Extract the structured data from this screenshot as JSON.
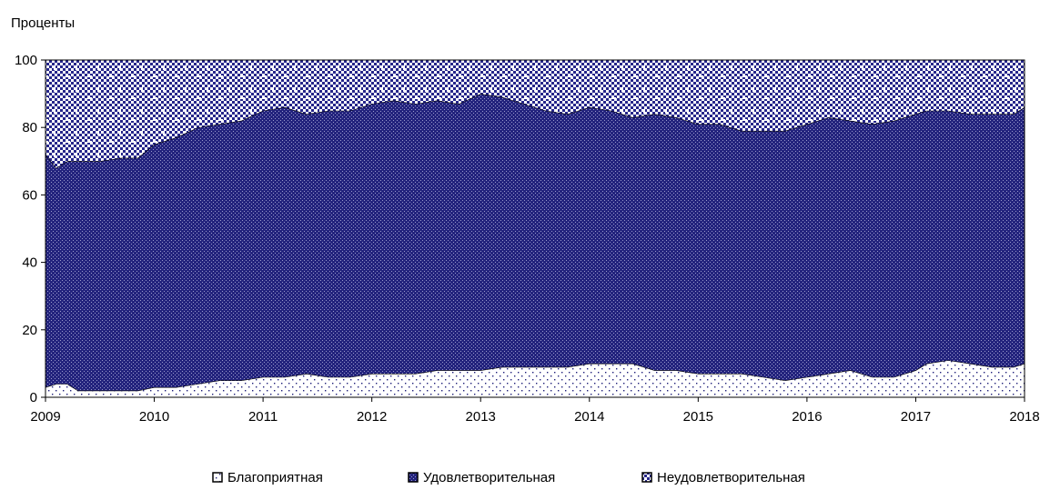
{
  "chart_data": {
    "type": "area",
    "stacked": true,
    "ylabel": "Проценты",
    "ylim": [
      0,
      100
    ],
    "yticks": [
      0,
      20,
      40,
      60,
      80,
      100
    ],
    "xlim": [
      2009,
      2018
    ],
    "xticks": [
      "2009",
      "2010",
      "2011",
      "2012",
      "2013",
      "2014",
      "2015",
      "2016",
      "2017",
      "2018"
    ],
    "legend_position": "bottom",
    "grid": false,
    "series": [
      {
        "name": "Благоприятная",
        "values": [
          [
            2009.0,
            3
          ],
          [
            2009.1,
            4
          ],
          [
            2009.2,
            4
          ],
          [
            2009.3,
            2
          ],
          [
            2009.5,
            2
          ],
          [
            2009.7,
            2
          ],
          [
            2009.85,
            2
          ],
          [
            2010.0,
            3
          ],
          [
            2010.2,
            3
          ],
          [
            2010.4,
            4
          ],
          [
            2010.6,
            5
          ],
          [
            2010.8,
            5
          ],
          [
            2011.0,
            6
          ],
          [
            2011.2,
            6
          ],
          [
            2011.4,
            7
          ],
          [
            2011.6,
            6
          ],
          [
            2011.8,
            6
          ],
          [
            2012.0,
            7
          ],
          [
            2012.2,
            7
          ],
          [
            2012.4,
            7
          ],
          [
            2012.6,
            8
          ],
          [
            2012.8,
            8
          ],
          [
            2013.0,
            8
          ],
          [
            2013.2,
            9
          ],
          [
            2013.4,
            9
          ],
          [
            2013.6,
            9
          ],
          [
            2013.8,
            9
          ],
          [
            2014.0,
            10
          ],
          [
            2014.2,
            10
          ],
          [
            2014.4,
            10
          ],
          [
            2014.6,
            8
          ],
          [
            2014.8,
            8
          ],
          [
            2015.0,
            7
          ],
          [
            2015.2,
            7
          ],
          [
            2015.4,
            7
          ],
          [
            2015.6,
            6
          ],
          [
            2015.8,
            5
          ],
          [
            2016.0,
            6
          ],
          [
            2016.2,
            7
          ],
          [
            2016.4,
            8
          ],
          [
            2016.6,
            6
          ],
          [
            2016.8,
            6
          ],
          [
            2017.0,
            8
          ],
          [
            2017.1,
            10
          ],
          [
            2017.3,
            11
          ],
          [
            2017.5,
            10
          ],
          [
            2017.7,
            9
          ],
          [
            2017.9,
            9
          ],
          [
            2018.0,
            10
          ]
        ],
        "color": "#ffffff"
      },
      {
        "name": "Удовлетворительная",
        "values": [
          [
            2009.0,
            69
          ],
          [
            2009.1,
            64
          ],
          [
            2009.2,
            66
          ],
          [
            2009.3,
            68
          ],
          [
            2009.5,
            68
          ],
          [
            2009.7,
            69
          ],
          [
            2009.85,
            69
          ],
          [
            2010.0,
            72
          ],
          [
            2010.2,
            74
          ],
          [
            2010.4,
            76
          ],
          [
            2010.6,
            76
          ],
          [
            2010.8,
            77
          ],
          [
            2011.0,
            79
          ],
          [
            2011.2,
            80
          ],
          [
            2011.4,
            77
          ],
          [
            2011.6,
            79
          ],
          [
            2011.8,
            79
          ],
          [
            2012.0,
            80
          ],
          [
            2012.2,
            81
          ],
          [
            2012.4,
            80
          ],
          [
            2012.6,
            80
          ],
          [
            2012.8,
            79
          ],
          [
            2013.0,
            82
          ],
          [
            2013.2,
            80
          ],
          [
            2013.4,
            78
          ],
          [
            2013.6,
            76
          ],
          [
            2013.8,
            75
          ],
          [
            2014.0,
            76
          ],
          [
            2014.2,
            75
          ],
          [
            2014.4,
            73
          ],
          [
            2014.6,
            76
          ],
          [
            2014.8,
            75
          ],
          [
            2015.0,
            74
          ],
          [
            2015.2,
            74
          ],
          [
            2015.4,
            72
          ],
          [
            2015.6,
            73
          ],
          [
            2015.8,
            74
          ],
          [
            2016.0,
            75
          ],
          [
            2016.2,
            76
          ],
          [
            2016.4,
            74
          ],
          [
            2016.6,
            75
          ],
          [
            2016.8,
            76
          ],
          [
            2017.0,
            76
          ],
          [
            2017.1,
            75
          ],
          [
            2017.3,
            74
          ],
          [
            2017.5,
            74
          ],
          [
            2017.7,
            75
          ],
          [
            2017.9,
            75
          ],
          [
            2018.0,
            76
          ]
        ],
        "color": "#1f1f7a"
      },
      {
        "name": "Неудовлетворительная",
        "values": [
          [
            2009.0,
            28
          ],
          [
            2009.1,
            32
          ],
          [
            2009.2,
            30
          ],
          [
            2009.3,
            30
          ],
          [
            2009.5,
            30
          ],
          [
            2009.7,
            29
          ],
          [
            2009.85,
            29
          ],
          [
            2010.0,
            25
          ],
          [
            2010.2,
            23
          ],
          [
            2010.4,
            20
          ],
          [
            2010.6,
            19
          ],
          [
            2010.8,
            18
          ],
          [
            2011.0,
            15
          ],
          [
            2011.2,
            14
          ],
          [
            2011.4,
            16
          ],
          [
            2011.6,
            15
          ],
          [
            2011.8,
            15
          ],
          [
            2012.0,
            13
          ],
          [
            2012.2,
            12
          ],
          [
            2012.4,
            13
          ],
          [
            2012.6,
            12
          ],
          [
            2012.8,
            13
          ],
          [
            2013.0,
            10
          ],
          [
            2013.2,
            11
          ],
          [
            2013.4,
            13
          ],
          [
            2013.6,
            15
          ],
          [
            2013.8,
            16
          ],
          [
            2014.0,
            14
          ],
          [
            2014.2,
            15
          ],
          [
            2014.4,
            17
          ],
          [
            2014.6,
            16
          ],
          [
            2014.8,
            17
          ],
          [
            2015.0,
            19
          ],
          [
            2015.2,
            19
          ],
          [
            2015.4,
            21
          ],
          [
            2015.6,
            21
          ],
          [
            2015.8,
            21
          ],
          [
            2016.0,
            19
          ],
          [
            2016.2,
            17
          ],
          [
            2016.4,
            18
          ],
          [
            2016.6,
            19
          ],
          [
            2016.8,
            18
          ],
          [
            2017.0,
            16
          ],
          [
            2017.1,
            15
          ],
          [
            2017.3,
            15
          ],
          [
            2017.5,
            16
          ],
          [
            2017.7,
            16
          ],
          [
            2017.9,
            16
          ],
          [
            2018.0,
            14
          ]
        ],
        "color": "#ffffff"
      }
    ]
  }
}
